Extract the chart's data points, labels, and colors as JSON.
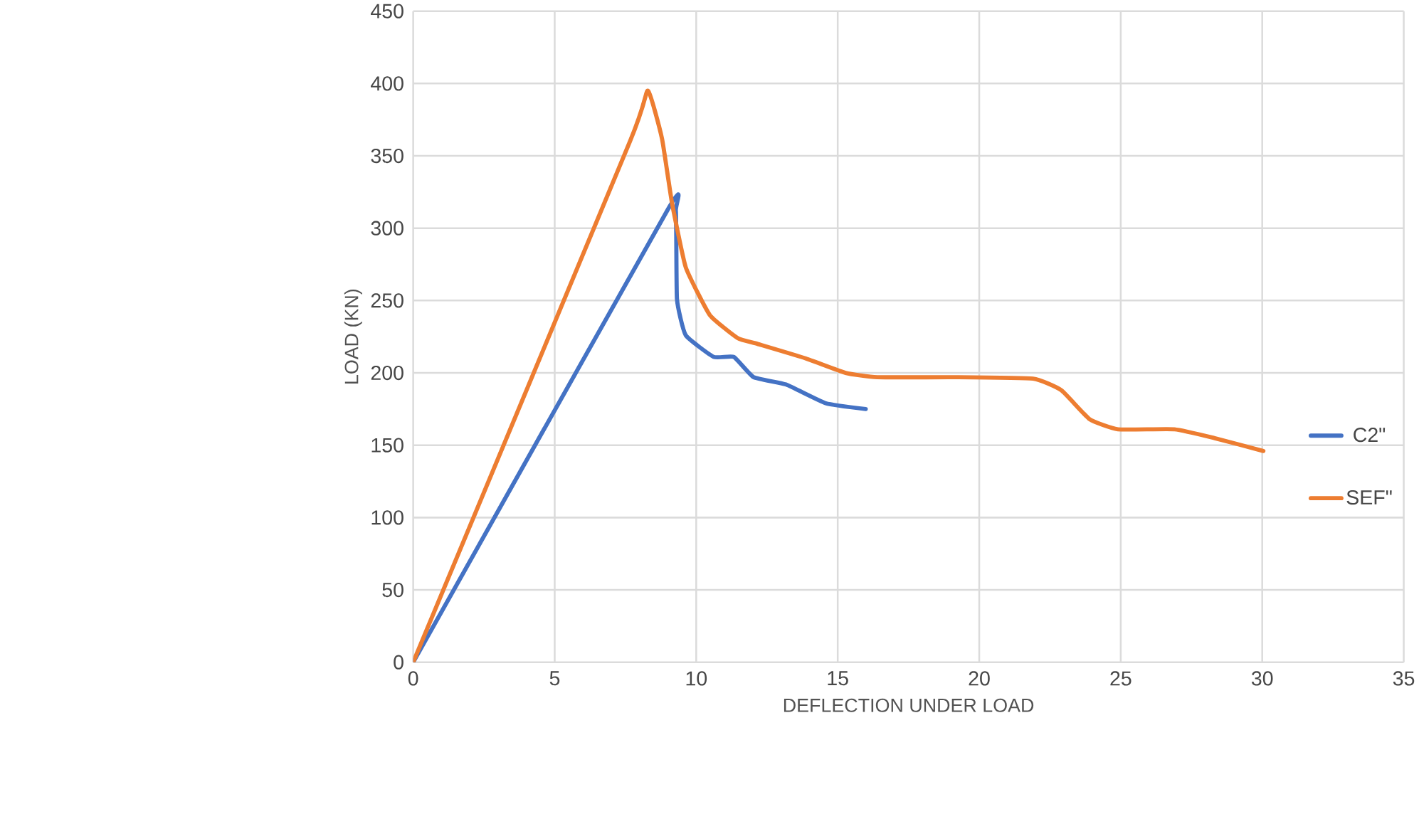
{
  "chart_data": {
    "type": "line",
    "xlabel": "DEFLECTION UNDER LOAD",
    "ylabel": "LOAD (KN)",
    "xlim": [
      0,
      35
    ],
    "ylim": [
      0,
      450
    ],
    "xticks": [
      0,
      5,
      10,
      15,
      20,
      25,
      30,
      35
    ],
    "yticks": [
      0,
      50,
      100,
      150,
      200,
      250,
      300,
      350,
      400,
      450
    ],
    "grid": true,
    "legend": "right",
    "line_style": "solid",
    "marker": "none",
    "series": [
      {
        "name": "C2\"",
        "color": "#4472c4",
        "x": [
          0,
          9.0,
          9.28,
          9.32,
          9.63,
          10.62,
          11.33,
          12.03,
          13.17,
          14.58,
          15.99
        ],
        "values": [
          0,
          313,
          312,
          251,
          226,
          211,
          211,
          197,
          192,
          179,
          175
        ]
      },
      {
        "name": "SEF\"",
        "color": "#ed7d31",
        "x": [
          0,
          7.66,
          8.29,
          8.79,
          9.14,
          9.63,
          10.48,
          11.47,
          12.17,
          13.87,
          15.28,
          16.4,
          19.1,
          21.9,
          22.9,
          23.9,
          24.9,
          26.9,
          28.3,
          30.04
        ],
        "values": [
          0,
          360,
          395,
          362,
          318,
          273,
          240,
          224,
          220,
          210,
          200,
          197,
          197,
          196,
          188,
          168,
          161,
          161,
          155,
          146
        ]
      }
    ]
  }
}
